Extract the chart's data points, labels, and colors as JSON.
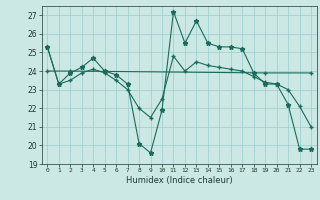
{
  "title": "",
  "xlabel": "Humidex (Indice chaleur)",
  "bg_color": "#cce8e4",
  "line_color": "#1a6b5a",
  "grid_color": "#99cccc",
  "xlim": [
    -0.5,
    23.5
  ],
  "ylim": [
    19,
    27.5
  ],
  "yticks": [
    19,
    20,
    21,
    22,
    23,
    24,
    25,
    26,
    27
  ],
  "xticks": [
    0,
    1,
    2,
    3,
    4,
    5,
    6,
    7,
    8,
    9,
    10,
    11,
    12,
    13,
    14,
    15,
    16,
    17,
    18,
    19,
    20,
    21,
    22,
    23
  ],
  "series1_x": [
    0,
    1,
    2,
    3,
    4,
    5,
    6,
    7,
    8,
    9,
    10,
    11,
    12,
    13,
    14,
    15,
    16,
    17,
    18,
    19,
    20,
    21,
    22,
    23
  ],
  "series1_y": [
    25.3,
    23.3,
    23.9,
    24.2,
    24.7,
    24.0,
    23.8,
    23.3,
    20.1,
    19.6,
    21.9,
    27.2,
    25.5,
    26.7,
    25.5,
    25.3,
    25.3,
    25.2,
    23.9,
    23.3,
    23.3,
    22.2,
    19.8,
    19.8
  ],
  "series2_x": [
    0,
    2,
    19,
    23
  ],
  "series2_y": [
    24.0,
    24.0,
    23.9,
    23.9
  ],
  "series3_x": [
    0,
    1,
    2,
    3,
    4,
    5,
    6,
    7,
    8,
    9,
    10,
    11,
    12,
    13,
    14,
    15,
    16,
    17,
    18,
    19,
    20,
    21,
    22,
    23
  ],
  "series3_y": [
    25.3,
    23.3,
    23.5,
    23.9,
    24.1,
    23.9,
    23.5,
    23.0,
    22.0,
    21.5,
    22.5,
    24.8,
    24.0,
    24.5,
    24.3,
    24.2,
    24.1,
    24.0,
    23.7,
    23.4,
    23.3,
    23.0,
    22.1,
    21.0
  ]
}
